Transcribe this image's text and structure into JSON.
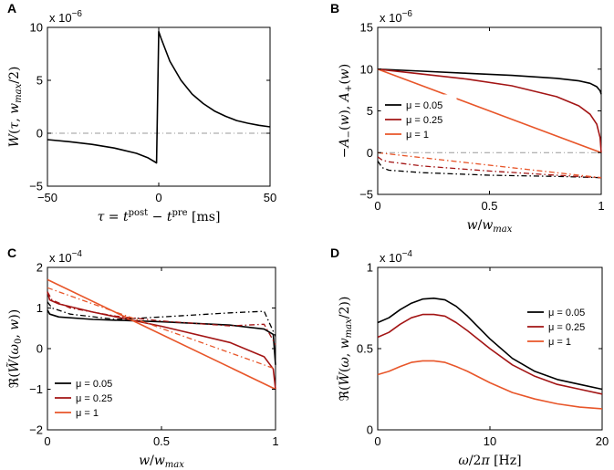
{
  "colors": {
    "black": "#000000",
    "dark_red": "#a31515",
    "orange": "#e8562a",
    "zero_line": "#9a9a9a"
  },
  "chart_data": [
    {
      "panel": "A",
      "type": "line",
      "title": "",
      "xlabel": "τ = t^post − t^pre [ms]",
      "ylabel": "W(τ, w_max/2)",
      "multiplier": "x 10^-6",
      "xlim": [
        -50,
        50
      ],
      "ylim": [
        -5,
        10
      ],
      "xticks": [
        -50,
        0,
        50
      ],
      "yticks": [
        -5,
        0,
        5,
        10
      ],
      "series": [
        {
          "name": "W",
          "color": "#000000",
          "style": "solid",
          "x": [
            -50,
            -40,
            -30,
            -20,
            -10,
            -5,
            -1,
            0,
            1,
            5,
            10,
            15,
            20,
            25,
            30,
            35,
            40,
            45,
            50
          ],
          "y": [
            -0.6,
            -0.8,
            -1.05,
            -1.4,
            -1.9,
            -2.3,
            -2.8,
            9.6,
            9.0,
            6.8,
            5.0,
            3.7,
            2.8,
            2.1,
            1.6,
            1.2,
            0.95,
            0.75,
            0.6
          ]
        }
      ]
    },
    {
      "panel": "B",
      "type": "line",
      "title": "",
      "xlabel": "w/w_max",
      "ylabel": "−A−(w), A+(w)",
      "multiplier": "x 10^-6",
      "xlim": [
        0,
        1
      ],
      "ylim": [
        -5,
        15
      ],
      "xticks": [
        0,
        0.5,
        1
      ],
      "yticks": [
        -5,
        0,
        5,
        10,
        15
      ],
      "legend": [
        "μ = 0.05",
        "μ = 0.25",
        "μ = 1"
      ],
      "legend_position": "center-left",
      "series": [
        {
          "name": "μ = 0.05 A+",
          "color": "#000000",
          "style": "solid",
          "x": [
            0,
            0.2,
            0.4,
            0.6,
            0.8,
            0.9,
            0.95,
            0.98,
            0.995,
            1
          ],
          "y": [
            10,
            9.75,
            9.5,
            9.25,
            8.9,
            8.6,
            8.3,
            7.9,
            7.4,
            7.0
          ]
        },
        {
          "name": "μ = 0.25 A+",
          "color": "#a31515",
          "style": "solid",
          "x": [
            0,
            0.2,
            0.4,
            0.6,
            0.8,
            0.9,
            0.95,
            0.98,
            0.995,
            1
          ],
          "y": [
            10,
            9.4,
            8.8,
            8.0,
            6.7,
            5.6,
            4.6,
            3.4,
            1.8,
            0.0
          ]
        },
        {
          "name": "μ = 1 A+",
          "color": "#e8562a",
          "style": "solid",
          "x": [
            0,
            1
          ],
          "y": [
            10,
            0
          ]
        },
        {
          "name": "μ = 0.05 A−",
          "color": "#000000",
          "style": "dashdot",
          "x": [
            0,
            0.02,
            0.05,
            0.2,
            0.5,
            0.8,
            1
          ],
          "y": [
            -1.0,
            -1.8,
            -2.1,
            -2.4,
            -2.7,
            -2.85,
            -3.0
          ]
        },
        {
          "name": "μ = 0.25 A−",
          "color": "#a31515",
          "style": "dashdot",
          "x": [
            0,
            0.02,
            0.05,
            0.2,
            0.5,
            0.8,
            1
          ],
          "y": [
            -0.5,
            -0.9,
            -1.1,
            -1.6,
            -2.2,
            -2.7,
            -3.0
          ]
        },
        {
          "name": "μ = 1 A−",
          "color": "#e8562a",
          "style": "dashdot",
          "x": [
            0,
            1
          ],
          "y": [
            0,
            -3.0
          ]
        }
      ]
    },
    {
      "panel": "C",
      "type": "line",
      "title": "",
      "xlabel": "w/w_max",
      "ylabel": "ℜ(W̃(ω0, w))",
      "multiplier": "x 10^-4",
      "xlim": [
        0,
        1
      ],
      "ylim": [
        -2,
        2
      ],
      "xticks": [
        0,
        0.5,
        1
      ],
      "yticks": [
        -2,
        -1,
        0,
        1,
        2
      ],
      "legend": [
        "μ = 0.05",
        "μ = 0.25",
        "μ = 1"
      ],
      "legend_position": "bottom-left",
      "series": [
        {
          "name": "μ = 0.05",
          "color": "#000000",
          "style": "solid",
          "x": [
            0,
            0.01,
            0.05,
            0.2,
            0.5,
            0.8,
            0.95,
            0.99,
            1
          ],
          "y": [
            0.95,
            0.85,
            0.78,
            0.72,
            0.66,
            0.58,
            0.48,
            0.35,
            -0.4
          ]
        },
        {
          "name": "μ = 0.25",
          "color": "#a31515",
          "style": "solid",
          "x": [
            0,
            0.01,
            0.05,
            0.2,
            0.5,
            0.8,
            0.95,
            0.99,
            1
          ],
          "y": [
            1.4,
            1.2,
            1.1,
            0.9,
            0.55,
            0.15,
            -0.2,
            -0.5,
            -1.0
          ]
        },
        {
          "name": "μ = 1",
          "color": "#e8562a",
          "style": "solid",
          "x": [
            0,
            1
          ],
          "y": [
            1.7,
            -1.0
          ]
        },
        {
          "name": "μ = 0.05 dash",
          "color": "#000000",
          "style": "dashdot",
          "x": [
            0,
            0.02,
            0.1,
            0.3,
            0.5,
            0.8,
            0.95,
            1
          ],
          "y": [
            1.15,
            1.0,
            0.85,
            0.72,
            0.78,
            0.88,
            0.92,
            0.3
          ]
        },
        {
          "name": "μ = 0.25 dash",
          "color": "#a31515",
          "style": "dashdot",
          "x": [
            0,
            0.02,
            0.1,
            0.3,
            0.5,
            0.8,
            0.95,
            1
          ],
          "y": [
            1.4,
            1.2,
            1.0,
            0.8,
            0.68,
            0.56,
            0.6,
            0.1
          ]
        },
        {
          "name": "μ = 1 dash",
          "color": "#e8562a",
          "style": "dashdot",
          "x": [
            0,
            1
          ],
          "y": [
            1.5,
            -0.5
          ]
        }
      ]
    },
    {
      "panel": "D",
      "type": "line",
      "title": "",
      "xlabel": "ω/2π [Hz]",
      "ylabel": "ℜ(W̃(ω, w_max/2))",
      "multiplier": "x 10^-4",
      "xlim": [
        0,
        20
      ],
      "ylim": [
        0,
        1
      ],
      "xticks": [
        0,
        10,
        20
      ],
      "yticks": [
        0,
        0.5,
        1
      ],
      "legend": [
        "μ = 0.05",
        "μ = 0.25",
        "μ = 1"
      ],
      "legend_position": "top-right",
      "series": [
        {
          "name": "μ = 0.05",
          "color": "#000000",
          "style": "solid",
          "x": [
            0,
            1,
            2,
            3,
            4,
            5,
            6,
            7,
            8,
            10,
            12,
            14,
            16,
            18,
            20
          ],
          "y": [
            0.66,
            0.69,
            0.74,
            0.78,
            0.805,
            0.81,
            0.8,
            0.76,
            0.7,
            0.56,
            0.44,
            0.36,
            0.31,
            0.28,
            0.25
          ]
        },
        {
          "name": "μ = 0.25",
          "color": "#a31515",
          "style": "solid",
          "x": [
            0,
            1,
            2,
            3,
            4,
            5,
            6,
            7,
            8,
            10,
            12,
            14,
            16,
            18,
            20
          ],
          "y": [
            0.57,
            0.6,
            0.65,
            0.69,
            0.71,
            0.71,
            0.7,
            0.66,
            0.61,
            0.5,
            0.4,
            0.33,
            0.28,
            0.25,
            0.22
          ]
        },
        {
          "name": "μ = 1",
          "color": "#e8562a",
          "style": "solid",
          "x": [
            0,
            1,
            2,
            3,
            4,
            5,
            6,
            7,
            8,
            10,
            12,
            14,
            16,
            18,
            20
          ],
          "y": [
            0.34,
            0.36,
            0.39,
            0.415,
            0.425,
            0.425,
            0.415,
            0.39,
            0.36,
            0.29,
            0.23,
            0.19,
            0.16,
            0.14,
            0.13
          ]
        }
      ]
    }
  ]
}
